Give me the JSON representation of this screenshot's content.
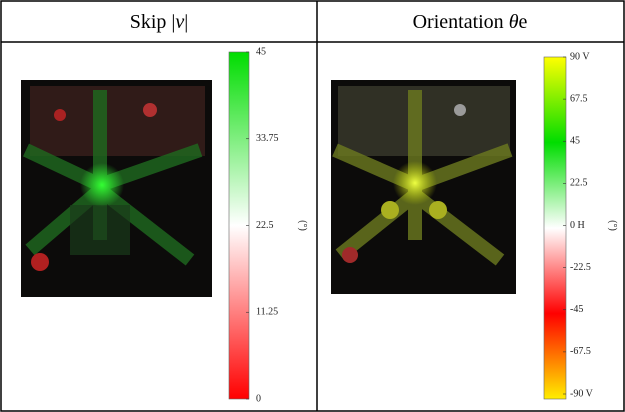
{
  "header": {
    "columns": [
      {
        "parts": [
          "Skip |",
          "v",
          "|"
        ]
      },
      {
        "parts": [
          "Orientation ",
          "θ",
          "e"
        ]
      }
    ]
  },
  "colorbars": [
    {
      "ticks": [
        "45",
        "33.75",
        "22.5",
        "11.25",
        "0"
      ],
      "unit": "(°)"
    },
    {
      "ticks": [
        "90 V",
        "67.5",
        "45",
        "22.5",
        "0 H",
        "-22.5",
        "-45",
        "-67.5",
        "-90 V"
      ],
      "unit": "(°)"
    }
  ]
}
